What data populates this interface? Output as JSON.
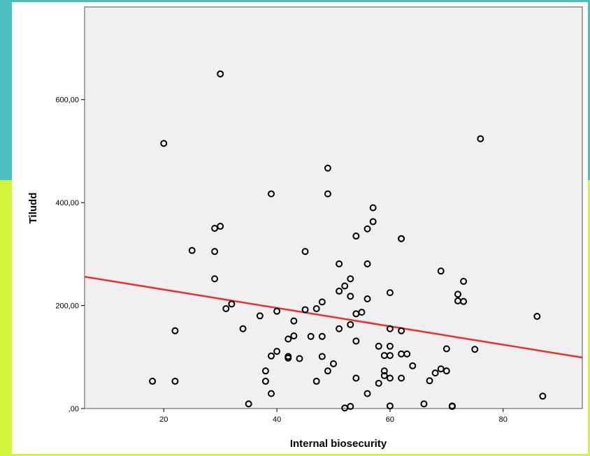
{
  "colors": {
    "frame_top": "#4bbfbd",
    "frame_bottom": "#d2f53a",
    "plot_background": "#f0f0f0",
    "fit_line": "#e8302f",
    "marker_stroke": "#000000"
  },
  "chart_data": {
    "type": "scatter",
    "title": "",
    "xlabel": "Internal biosecurity",
    "ylabel": "Tiludd",
    "xlim": [
      6,
      94
    ],
    "ylim": [
      0,
      780
    ],
    "x_ticks": [
      {
        "value": 20,
        "label": "20"
      },
      {
        "value": 40,
        "label": "40"
      },
      {
        "value": 60,
        "label": "60"
      },
      {
        "value": 80,
        "label": "80"
      }
    ],
    "y_ticks": [
      {
        "value": 0,
        "label": ",00"
      },
      {
        "value": 200,
        "label": "200,00"
      },
      {
        "value": 400,
        "label": "400,00"
      },
      {
        "value": 600,
        "label": "600,00"
      }
    ],
    "grid": false,
    "legend": "none",
    "fit_line": {
      "type": "linear",
      "x": [
        6,
        94
      ],
      "y": [
        256,
        99
      ]
    },
    "points": [
      {
        "x": 30,
        "y": 650
      },
      {
        "x": 20,
        "y": 515
      },
      {
        "x": 76,
        "y": 524
      },
      {
        "x": 49,
        "y": 467
      },
      {
        "x": 39,
        "y": 417
      },
      {
        "x": 49,
        "y": 417
      },
      {
        "x": 57,
        "y": 390
      },
      {
        "x": 57,
        "y": 363
      },
      {
        "x": 30,
        "y": 354
      },
      {
        "x": 29,
        "y": 350
      },
      {
        "x": 56,
        "y": 349
      },
      {
        "x": 54,
        "y": 335
      },
      {
        "x": 62,
        "y": 330
      },
      {
        "x": 62,
        "y": 330
      },
      {
        "x": 25,
        "y": 307
      },
      {
        "x": 29,
        "y": 305
      },
      {
        "x": 45,
        "y": 305
      },
      {
        "x": 51,
        "y": 281
      },
      {
        "x": 56,
        "y": 281
      },
      {
        "x": 69,
        "y": 267
      },
      {
        "x": 29,
        "y": 252
      },
      {
        "x": 53,
        "y": 252
      },
      {
        "x": 73,
        "y": 247
      },
      {
        "x": 52,
        "y": 238
      },
      {
        "x": 51,
        "y": 228
      },
      {
        "x": 60,
        "y": 225
      },
      {
        "x": 72,
        "y": 222
      },
      {
        "x": 53,
        "y": 218
      },
      {
        "x": 56,
        "y": 213
      },
      {
        "x": 72,
        "y": 209
      },
      {
        "x": 73,
        "y": 208
      },
      {
        "x": 48,
        "y": 207
      },
      {
        "x": 32,
        "y": 203
      },
      {
        "x": 31,
        "y": 194
      },
      {
        "x": 47,
        "y": 194
      },
      {
        "x": 45,
        "y": 192
      },
      {
        "x": 40,
        "y": 189
      },
      {
        "x": 55,
        "y": 187
      },
      {
        "x": 54,
        "y": 184
      },
      {
        "x": 86,
        "y": 179
      },
      {
        "x": 37,
        "y": 180
      },
      {
        "x": 43,
        "y": 170
      },
      {
        "x": 53,
        "y": 163
      },
      {
        "x": 34,
        "y": 155
      },
      {
        "x": 51,
        "y": 155
      },
      {
        "x": 60,
        "y": 155
      },
      {
        "x": 22,
        "y": 151
      },
      {
        "x": 62,
        "y": 151
      },
      {
        "x": 43,
        "y": 141
      },
      {
        "x": 46,
        "y": 140
      },
      {
        "x": 48,
        "y": 140
      },
      {
        "x": 42,
        "y": 135
      },
      {
        "x": 54,
        "y": 131
      },
      {
        "x": 58,
        "y": 121
      },
      {
        "x": 60,
        "y": 121
      },
      {
        "x": 70,
        "y": 116
      },
      {
        "x": 75,
        "y": 115
      },
      {
        "x": 40,
        "y": 111
      },
      {
        "x": 62,
        "y": 106
      },
      {
        "x": 63,
        "y": 106
      },
      {
        "x": 59,
        "y": 103
      },
      {
        "x": 60,
        "y": 103
      },
      {
        "x": 39,
        "y": 102
      },
      {
        "x": 42,
        "y": 101
      },
      {
        "x": 48,
        "y": 101
      },
      {
        "x": 42,
        "y": 98
      },
      {
        "x": 44,
        "y": 97
      },
      {
        "x": 50,
        "y": 87
      },
      {
        "x": 64,
        "y": 83
      },
      {
        "x": 69,
        "y": 77
      },
      {
        "x": 38,
        "y": 73
      },
      {
        "x": 49,
        "y": 73
      },
      {
        "x": 59,
        "y": 73
      },
      {
        "x": 70,
        "y": 73
      },
      {
        "x": 68,
        "y": 69
      },
      {
        "x": 59,
        "y": 64
      },
      {
        "x": 54,
        "y": 59
      },
      {
        "x": 60,
        "y": 59
      },
      {
        "x": 62,
        "y": 59
      },
      {
        "x": 18,
        "y": 53
      },
      {
        "x": 22,
        "y": 53
      },
      {
        "x": 38,
        "y": 53
      },
      {
        "x": 47,
        "y": 53
      },
      {
        "x": 67,
        "y": 54
      },
      {
        "x": 58,
        "y": 49
      },
      {
        "x": 39,
        "y": 29
      },
      {
        "x": 56,
        "y": 29
      },
      {
        "x": 87,
        "y": 24
      },
      {
        "x": 35,
        "y": 9
      },
      {
        "x": 66,
        "y": 9
      },
      {
        "x": 60,
        "y": 5
      },
      {
        "x": 71,
        "y": 5
      },
      {
        "x": 71,
        "y": 4
      },
      {
        "x": 53,
        "y": 4
      },
      {
        "x": 52,
        "y": 1
      }
    ]
  }
}
